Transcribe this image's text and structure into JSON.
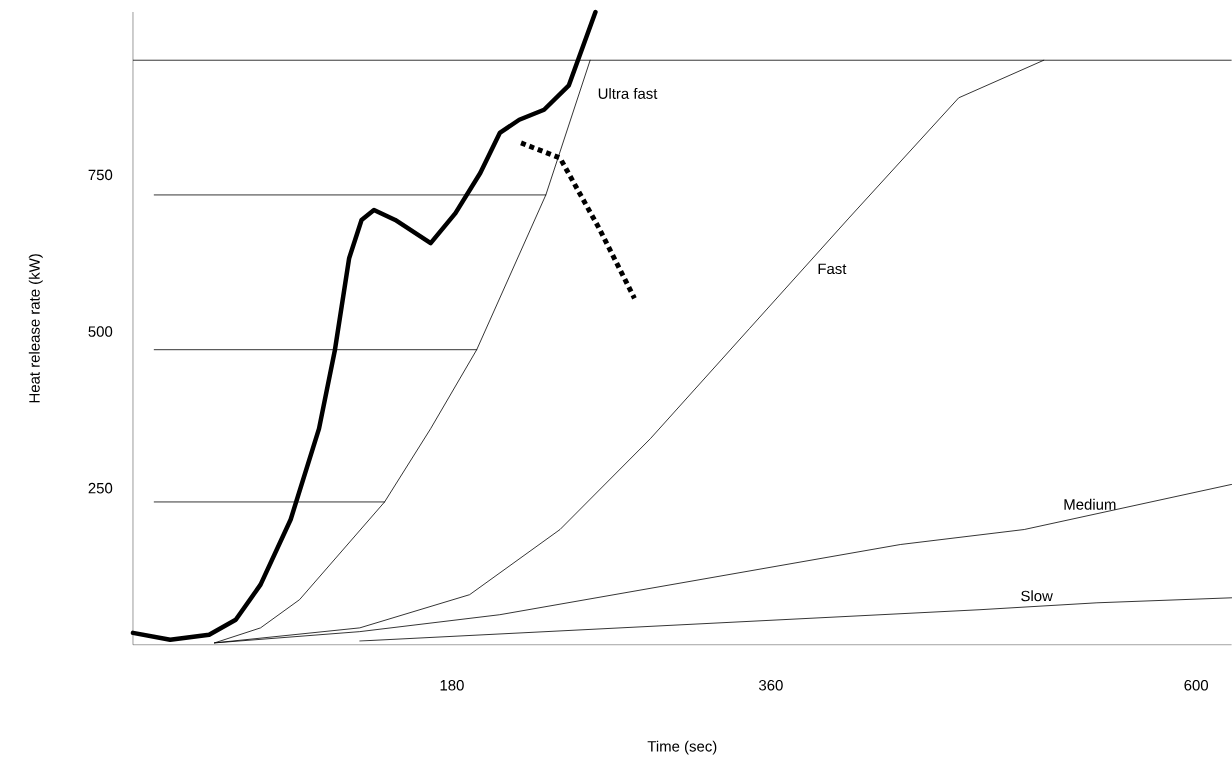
{
  "chart_data": {
    "type": "line",
    "xlabel": "Time (sec)",
    "ylabel": "Heat release rate (kW)",
    "xlim": [
      0,
      620
    ],
    "ylim": [
      0,
      1010
    ],
    "xticks": [
      180,
      360,
      600
    ],
    "yticks": [
      250,
      500,
      750
    ],
    "grid": false,
    "legend": false,
    "marker": "none",
    "ref_lines": [
      {
        "axis": "y",
        "value": 933,
        "color": "#000000"
      }
    ],
    "series": [
      {
        "color": "#000000",
        "x": [
          0,
          21,
          43,
          58,
          72,
          89,
          105,
          114,
          122,
          129,
          136,
          148,
          168,
          182,
          196,
          207,
          218,
          232,
          246,
          261
        ],
        "values": [
          19,
          8,
          16,
          40,
          96,
          200,
          345,
          471,
          617,
          678,
          694,
          678,
          641,
          689,
          753,
          817,
          838,
          854,
          893,
          1010
        ]
      },
      {
        "color": "#000000",
        "line_style": "dotted",
        "x": [
          219,
          241,
          263,
          283
        ],
        "values": [
          801,
          777,
          665,
          553
        ]
      },
      {
        "name": "Ultra fast",
        "color": "#000000",
        "x": [
          46,
          72,
          94,
          142,
          168,
          194,
          233,
          258
        ],
        "values": [
          3,
          27,
          72,
          228,
          345,
          471,
          718,
          933
        ]
      },
      {
        "name": "Fast",
        "color": "#000000",
        "x": [
          46,
          128,
          190,
          241,
          292,
          348,
          404,
          466,
          514
        ],
        "values": [
          3,
          27,
          80,
          184,
          329,
          505,
          681,
          873,
          933
        ]
      },
      {
        "name": "Medium",
        "color": "#000000",
        "x": [
          46,
          128,
          207,
          320,
          433,
          503,
          620
        ],
        "values": [
          3,
          21,
          48,
          104,
          160,
          184,
          256
        ]
      },
      {
        "name": "Slow",
        "color": "#000000",
        "x": [
          128,
          478,
          544,
          620
        ],
        "values": [
          6,
          56,
          67,
          75
        ]
      },
      {
        "color": "#000000",
        "x": [
          12,
          142
        ],
        "values": [
          228,
          228
        ]
      },
      {
        "color": "#000000",
        "x": [
          12,
          194
        ],
        "values": [
          471,
          471
        ]
      },
      {
        "color": "#000000",
        "x": [
          12,
          233
        ],
        "values": [
          718,
          718
        ]
      }
    ]
  }
}
